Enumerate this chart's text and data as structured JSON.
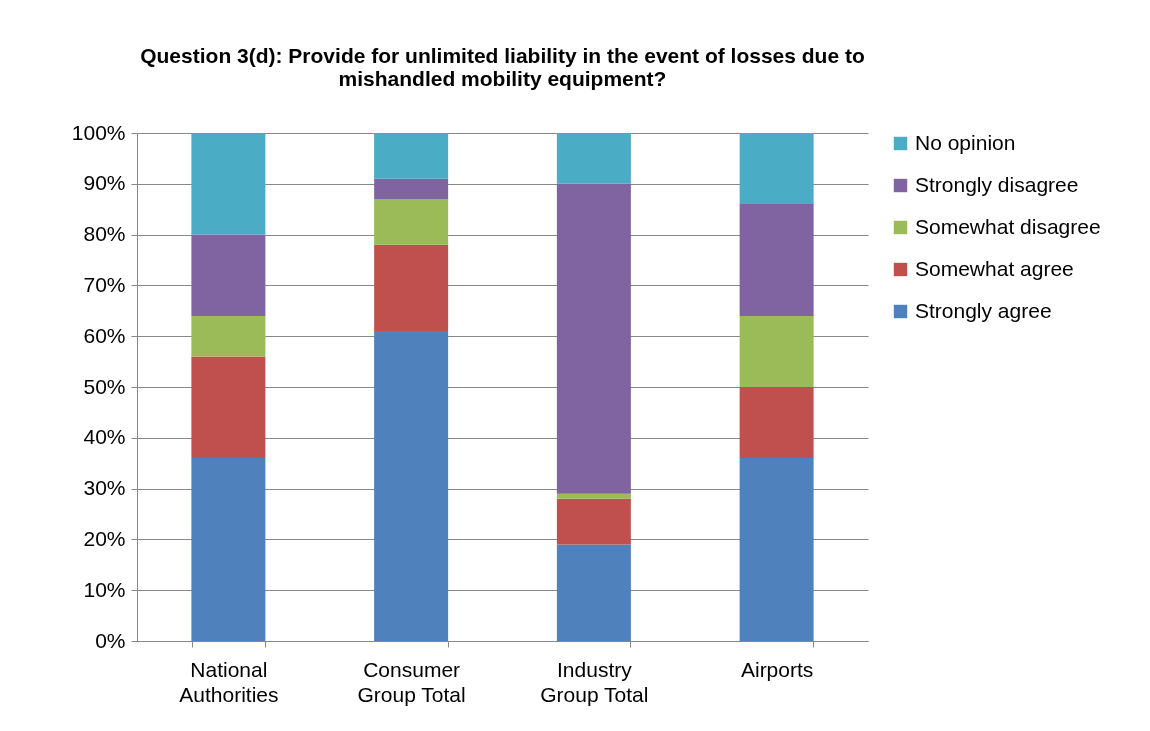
{
  "chart_data": {
    "type": "bar",
    "title": "Question 3(d): Provide for unlimited liability in the event of losses due to mishandled mobility equipment?",
    "categories": [
      "National Authorities",
      "Consumer Group Total",
      "Industry Group Total",
      "Airports"
    ],
    "stacked": true,
    "series": [
      {
        "name": "Strongly agree",
        "color": "#4f81bd",
        "values": [
          36,
          61,
          19,
          36
        ]
      },
      {
        "name": "Somewhat agree",
        "color": "#c0504d",
        "values": [
          20,
          17,
          9,
          14
        ]
      },
      {
        "name": "Somewhat disagree",
        "color": "#9bbb59",
        "values": [
          8,
          9,
          1,
          14
        ]
      },
      {
        "name": "Strongly disagree",
        "color": "#8064a2",
        "values": [
          16,
          4,
          61,
          22
        ]
      },
      {
        "name": "No opinion",
        "color": "#4bacc6",
        "values": [
          20,
          9,
          10,
          14
        ]
      }
    ],
    "ylim": [
      0,
      100
    ],
    "yticks": [
      {
        "value": 0,
        "label": "0%"
      },
      {
        "value": 10,
        "label": "10%"
      },
      {
        "value": 20,
        "label": "20%"
      },
      {
        "value": 30,
        "label": "30%"
      },
      {
        "value": 40,
        "label": "40%"
      },
      {
        "value": 50,
        "label": "50%"
      },
      {
        "value": 60,
        "label": "60%"
      },
      {
        "value": 70,
        "label": "70%"
      },
      {
        "value": 80,
        "label": "80%"
      },
      {
        "value": 90,
        "label": "90%"
      },
      {
        "value": 100,
        "label": "100%"
      }
    ],
    "grid": "y",
    "legend": "right"
  }
}
